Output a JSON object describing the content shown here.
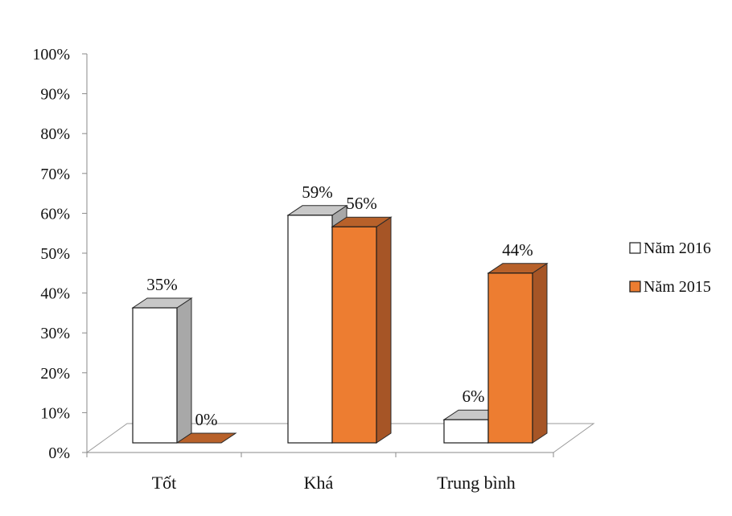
{
  "chart_data": {
    "type": "bar",
    "style": "3d-clustered-column",
    "categories": [
      "Tốt",
      "Khá",
      "Trung bình"
    ],
    "series": [
      {
        "name": "Năm 2016",
        "values": [
          35,
          59,
          6
        ],
        "labels": [
          "35%",
          "59%",
          "6%"
        ],
        "color": "#ffffff"
      },
      {
        "name": "Năm 2015",
        "values": [
          0,
          56,
          44
        ],
        "labels": [
          "0%",
          "56%",
          "44%"
        ],
        "color": "#ed7d31"
      }
    ],
    "ylim": [
      0,
      100
    ],
    "yticks": [
      "0%",
      "10%",
      "20%",
      "30%",
      "40%",
      "50%",
      "60%",
      "70%",
      "80%",
      "90%",
      "100%"
    ],
    "grid": false,
    "legend_position": "right"
  }
}
